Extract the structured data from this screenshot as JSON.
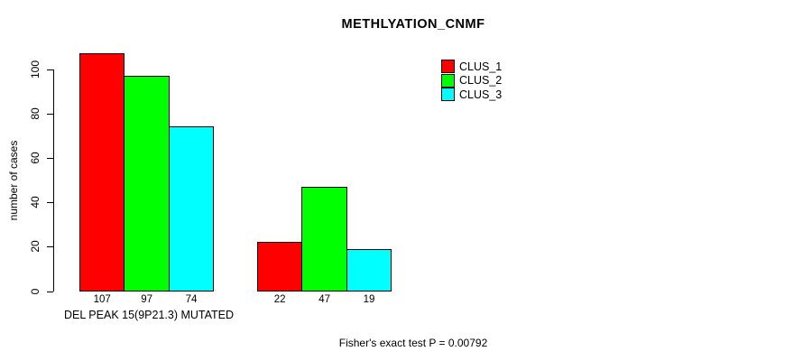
{
  "chart_data": {
    "type": "bar",
    "title": "METHLYATION_CNMF",
    "xlabel": "",
    "ylabel": "number of cases",
    "yticks": [
      0,
      20,
      40,
      60,
      80,
      100
    ],
    "ylim": [
      0,
      107
    ],
    "grid": false,
    "groups": [
      {
        "label": "DEL PEAK 15(9P21.3) MUTATED",
        "values": [
          107,
          97,
          74
        ]
      },
      {
        "label": "",
        "values": [
          22,
          47,
          19
        ]
      }
    ],
    "series": [
      {
        "name": "CLUS_1",
        "color": "#FF0000",
        "values": [
          107,
          22
        ]
      },
      {
        "name": "CLUS_2",
        "color": "#00FF00",
        "values": [
          97,
          47
        ]
      },
      {
        "name": "CLUS_3",
        "color": "#00FFFF",
        "values": [
          74,
          19
        ]
      }
    ],
    "bar_value_labels": [
      "107",
      "97",
      "74",
      "22",
      "47",
      "19"
    ],
    "legend_position": "top-right",
    "annotation": "Fisher's exact test P = 0.00792"
  }
}
